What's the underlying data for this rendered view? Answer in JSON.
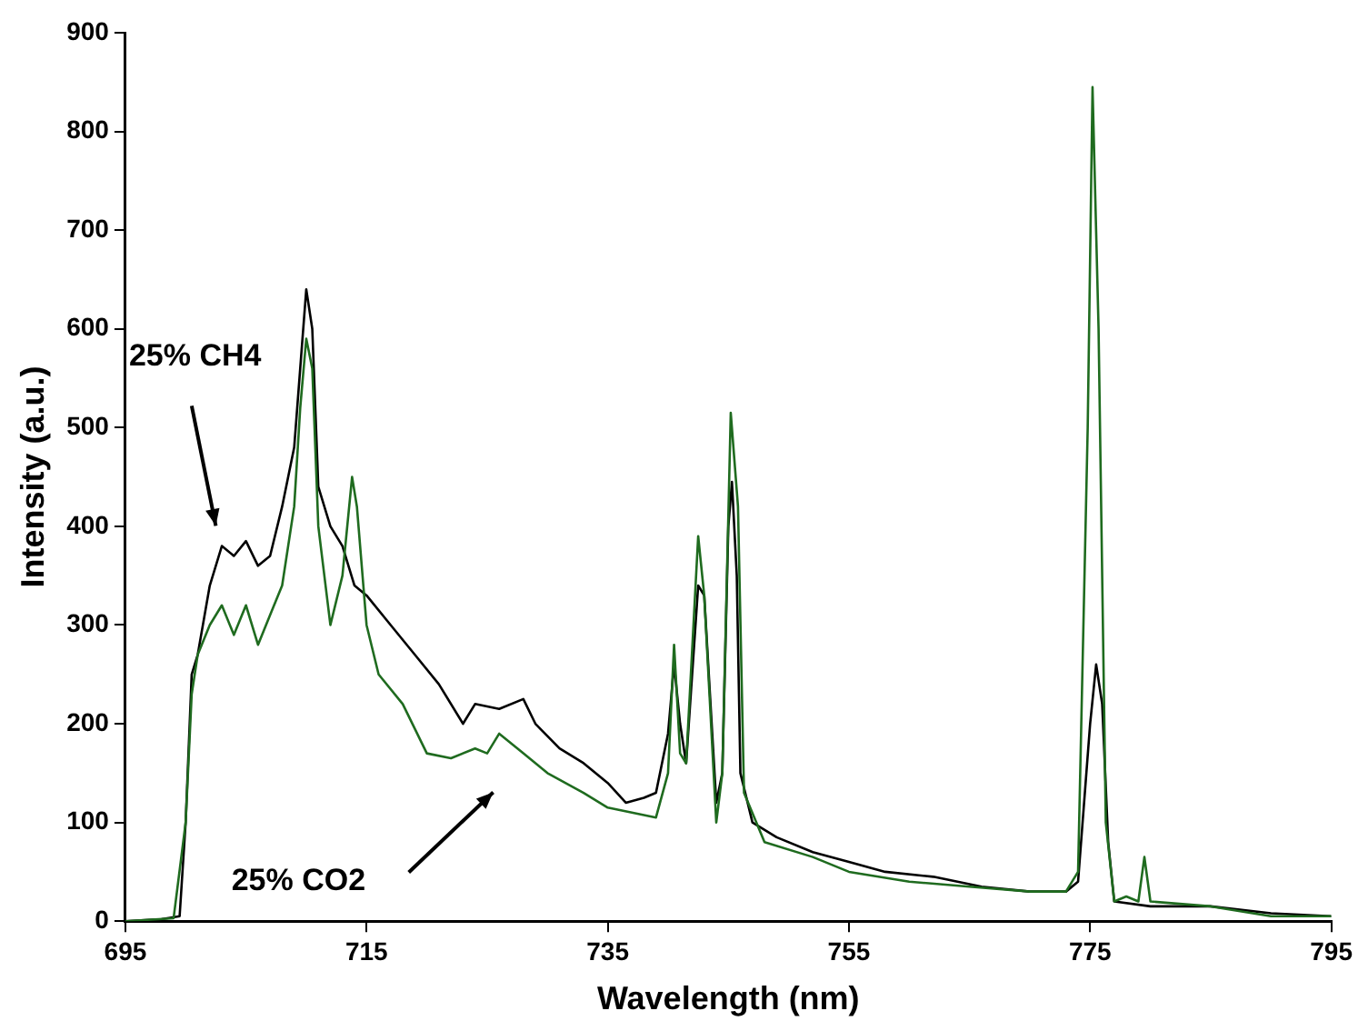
{
  "chart_data": {
    "type": "line",
    "xlabel": "Wavelength (nm)",
    "ylabel": "Intensity (a.u.)",
    "xlim": [
      695,
      795
    ],
    "xticks": [
      695,
      715,
      735,
      755,
      775,
      795
    ],
    "ylim": [
      0,
      900
    ],
    "yticks": [
      0,
      100,
      200,
      300,
      400,
      500,
      600,
      700,
      800,
      900
    ],
    "grid": false,
    "legend": false,
    "marker": "none",
    "line_style": "solid",
    "series": [
      {
        "name": "25% CH4",
        "color": "#000000",
        "x": [
          695,
          698,
          699.5,
          700,
          700.5,
          701,
          702,
          703,
          704,
          705,
          706,
          707,
          708,
          709,
          709.5,
          710,
          710.5,
          711,
          712,
          713,
          714,
          715,
          717,
          719,
          721,
          723,
          724,
          726,
          728,
          729,
          731,
          733,
          735,
          736.5,
          738,
          739,
          740,
          740.5,
          741,
          741.5,
          742.5,
          743,
          744,
          744.5,
          745,
          745.3,
          745.7,
          746,
          747,
          749,
          752,
          755,
          758,
          762,
          766,
          770,
          773,
          774,
          775,
          775.5,
          776,
          776.5,
          777,
          780,
          785,
          790,
          795
        ],
        "values": [
          0,
          2,
          5,
          100,
          250,
          270,
          340,
          380,
          370,
          385,
          360,
          370,
          420,
          480,
          560,
          640,
          600,
          440,
          400,
          380,
          340,
          330,
          300,
          270,
          240,
          200,
          220,
          215,
          225,
          200,
          175,
          160,
          140,
          120,
          125,
          130,
          190,
          260,
          200,
          160,
          340,
          330,
          120,
          150,
          400,
          445,
          350,
          150,
          100,
          85,
          70,
          60,
          50,
          45,
          35,
          30,
          30,
          40,
          200,
          260,
          220,
          80,
          20,
          15,
          15,
          8,
          5
        ]
      },
      {
        "name": "25% CO2",
        "color": "#1f6b1f",
        "x": [
          695,
          699,
          700,
          700.5,
          701,
          702,
          703,
          704,
          705,
          706,
          707,
          708,
          709,
          709.5,
          710,
          710.5,
          711,
          712,
          713,
          713.8,
          714.2,
          715,
          716,
          718,
          720,
          722,
          724,
          725,
          726,
          728,
          730,
          733,
          735,
          737,
          739,
          740,
          740.5,
          741,
          741.5,
          742.5,
          743,
          744,
          744.5,
          745.2,
          745.8,
          746.3,
          748,
          752,
          755,
          760,
          765,
          770,
          773,
          774,
          774.8,
          775.2,
          775.7,
          776.3,
          777,
          778,
          779,
          779.5,
          780,
          785,
          790,
          795
        ],
        "values": [
          0,
          3,
          100,
          230,
          270,
          300,
          320,
          290,
          320,
          280,
          310,
          340,
          420,
          520,
          590,
          560,
          400,
          300,
          350,
          450,
          420,
          300,
          250,
          220,
          170,
          165,
          175,
          170,
          190,
          170,
          150,
          130,
          115,
          110,
          105,
          150,
          280,
          170,
          160,
          390,
          330,
          100,
          150,
          515,
          420,
          130,
          80,
          65,
          50,
          40,
          35,
          30,
          30,
          50,
          500,
          845,
          600,
          100,
          20,
          25,
          20,
          65,
          20,
          15,
          5,
          5
        ]
      }
    ]
  }
}
